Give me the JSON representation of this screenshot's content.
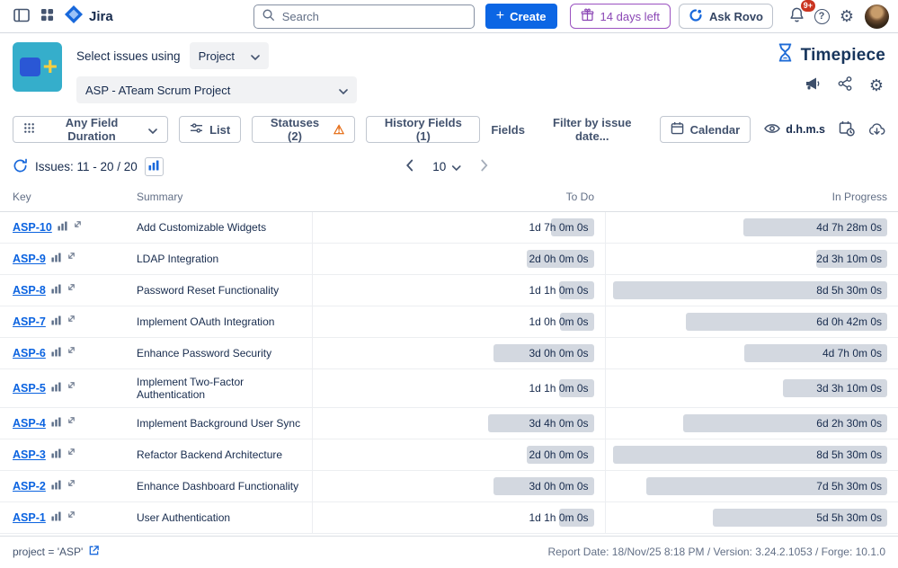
{
  "topnav": {
    "app_name": "Jira",
    "search": {
      "placeholder": "Search"
    },
    "create_button": "Create",
    "trial_chip": "14 days left",
    "rovo_button": "Ask Rovo",
    "notifications_badge": "9+",
    "help_glyph": "?"
  },
  "header": {
    "select_issues_label": "Select issues using",
    "issue_source_selected": "Project",
    "project_selected": "ASP - ATeam Scrum Project",
    "brand_name": "Timepiece"
  },
  "toolbar": {
    "duration_field_button": "Any Field Duration",
    "list_button": "List",
    "statuses_button": "Statuses (2)",
    "history_fields_button": "History Fields (1)",
    "fields_button": "Fields",
    "date_filter_placeholder": "Filter by issue date...",
    "calendar_button": "Calendar",
    "time_format": "d.h.m.s"
  },
  "status_bar": {
    "issues_count": "Issues: 11 - 20 / 20",
    "page_size": "10"
  },
  "table": {
    "columns": {
      "key": "Key",
      "summary": "Summary",
      "todo": "To Do",
      "in_progress": "In Progress"
    },
    "rows": [
      {
        "key": "ASP-10",
        "summary": "Add Customizable Widgets",
        "todo": {
          "label": "1d 7h 0m 0s",
          "pct": 15.7
        },
        "in_progress": {
          "label": "4d 7h 28m 0s",
          "pct": 52.4
        }
      },
      {
        "key": "ASP-9",
        "summary": "LDAP Integration",
        "todo": {
          "label": "2d 0h 0m 0s",
          "pct": 24.3
        },
        "in_progress": {
          "label": "2d 3h 10m 0s",
          "pct": 25.9
        }
      },
      {
        "key": "ASP-8",
        "summary": "Password Reset Functionality",
        "todo": {
          "label": "1d 1h 0m 0s",
          "pct": 12.7
        },
        "in_progress": {
          "label": "8d 5h 30m 0s",
          "pct": 100
        }
      },
      {
        "key": "ASP-7",
        "summary": "Implement OAuth Integration",
        "todo": {
          "label": "1d 0h 0m 0s",
          "pct": 12.2
        },
        "in_progress": {
          "label": "6d 0h 42m 0s",
          "pct": 73.3
        }
      },
      {
        "key": "ASP-6",
        "summary": "Enhance Password Security",
        "todo": {
          "label": "3d 0h 0m 0s",
          "pct": 36.5
        },
        "in_progress": {
          "label": "4d 7h 0m 0s",
          "pct": 52.2
        }
      },
      {
        "key": "ASP-5",
        "summary": "Implement Two-Factor Authentication",
        "todo": {
          "label": "1d 1h 0m 0s",
          "pct": 12.7
        },
        "in_progress": {
          "label": "3d 3h 10m 0s",
          "pct": 38.1
        }
      },
      {
        "key": "ASP-4",
        "summary": "Implement Background User Sync",
        "todo": {
          "label": "3d 4h 0m 0s",
          "pct": 38.5
        },
        "in_progress": {
          "label": "6d 2h 30m 0s",
          "pct": 74.2
        }
      },
      {
        "key": "ASP-3",
        "summary": "Refactor Backend Architecture",
        "todo": {
          "label": "2d 0h 0m 0s",
          "pct": 24.3
        },
        "in_progress": {
          "label": "8d 5h 30m 0s",
          "pct": 100
        }
      },
      {
        "key": "ASP-2",
        "summary": "Enhance Dashboard Functionality",
        "todo": {
          "label": "3d 0h 0m 0s",
          "pct": 36.5
        },
        "in_progress": {
          "label": "7d 5h 30m 0s",
          "pct": 87.8
        }
      },
      {
        "key": "ASP-1",
        "summary": "User Authentication",
        "todo": {
          "label": "1d 1h 0m 0s",
          "pct": 12.7
        },
        "in_progress": {
          "label": "5d 5h 30m 0s",
          "pct": 63.5
        }
      }
    ]
  },
  "footer": {
    "query_link": "project = 'ASP'",
    "report_meta": "Report Date: 18/Nov/25 8:18 PM / Version: 3.24.2.1053 / Forge: 10.1.0"
  },
  "icons_unicode": {
    "settings_gear": "⚙",
    "warning_triangle": "⚠",
    "plus": "+"
  },
  "colors": {
    "accent_blue": "#1868db",
    "create_blue": "#0c66e4",
    "trial_purple": "#8b47b5",
    "bar_gray": "#d3d8e0",
    "link_blue": "#0b63e0",
    "warning_orange": "#e56910",
    "badge_red": "#ca3521",
    "timepiece_teal": "#35aecb"
  }
}
